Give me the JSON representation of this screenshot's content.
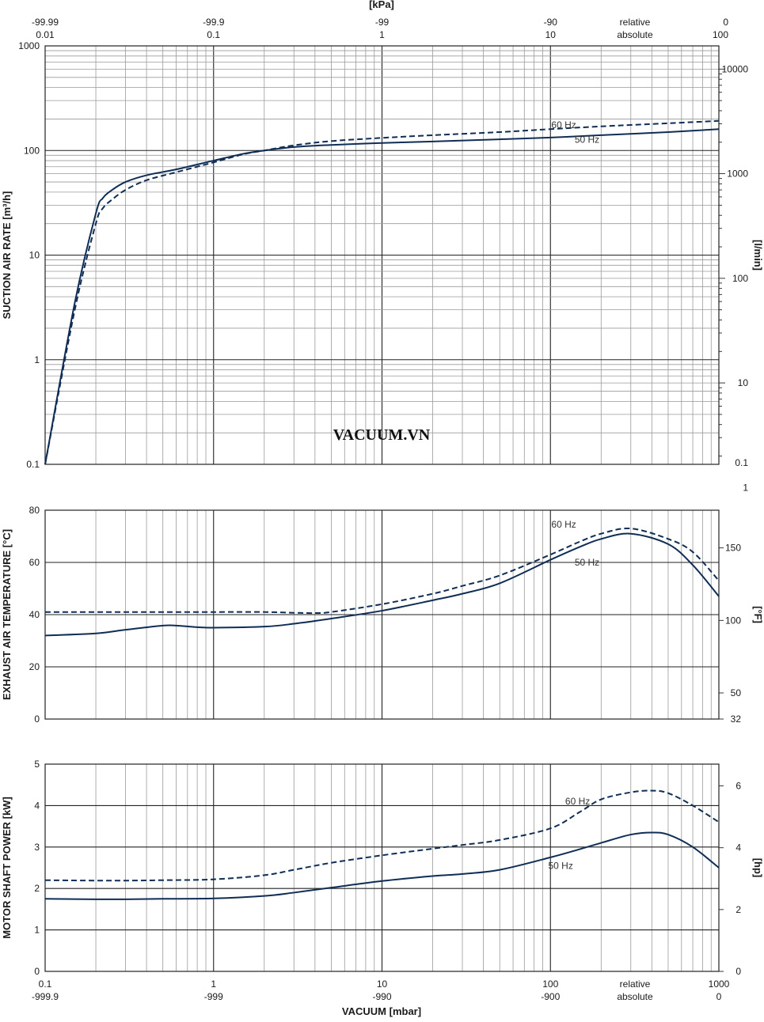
{
  "colors": {
    "curve": "#0f2d55",
    "grid_major": "#222222",
    "grid_minor": "#9a9a9a"
  },
  "watermark": "VACUUM.VN",
  "top_axis": {
    "title": "[kPa]",
    "ticks": [
      {
        "x": 0.01,
        "relative": "-99.99",
        "absolute": "0.01"
      },
      {
        "x": 0.1,
        "relative": "-99.9",
        "absolute": "0.1"
      },
      {
        "x": 1,
        "relative": "-99",
        "absolute": "1"
      },
      {
        "x": 10,
        "relative": "-90",
        "absolute": "10"
      },
      {
        "x": 100,
        "relative": "0",
        "absolute": "100"
      }
    ],
    "relative_label": "relative",
    "absolute_label": "absolute"
  },
  "bottom_axis": {
    "title": "VACUUM  [mbar]",
    "ticks": [
      {
        "x": 0.1,
        "absolute": "0.1",
        "relative": "-999.9"
      },
      {
        "x": 1,
        "absolute": "1",
        "relative": "-999"
      },
      {
        "x": 10,
        "absolute": "10",
        "relative": "-990"
      },
      {
        "x": 100,
        "absolute": "100",
        "relative": "-900"
      },
      {
        "x": 1000,
        "absolute": "1000",
        "relative": "0"
      }
    ],
    "relative_label": "relative",
    "absolute_label": "absolute"
  },
  "chart_data": [
    {
      "type": "line",
      "title": "",
      "xscale": "log",
      "xlim": [
        0.1,
        1000
      ],
      "yscale": "log",
      "ylim": [
        0.1,
        1000
      ],
      "xlabel": "VACUUM  [mbar]",
      "ylabel": "SUCTION AIR RATE  [m³/h]",
      "y2label": "[l/min]",
      "grid": true,
      "yticks": [
        {
          "v": 0.1,
          "label": "0.1"
        },
        {
          "v": 1,
          "label": "1"
        },
        {
          "v": 10,
          "label": "10"
        },
        {
          "v": 100,
          "label": "100"
        },
        {
          "v": 1000,
          "label": "1000"
        }
      ],
      "y2ticks": [
        {
          "v": 1,
          "label": "1"
        },
        {
          "v": 10,
          "label": "10"
        },
        {
          "v": 100,
          "label": "100"
        },
        {
          "v": 1000,
          "label": "1000"
        },
        {
          "v": 10000,
          "label": "10000"
        }
      ],
      "y2_minor_ticks": true,
      "y2_bottom_label": "0.1",
      "series": [
        {
          "name": "50 Hz",
          "style": "solid",
          "label_at": [
            165,
            127
          ],
          "x": [
            0.1,
            0.15,
            0.2,
            0.22,
            0.25,
            0.3,
            0.4,
            0.6,
            1,
            1.5,
            2,
            3,
            5,
            10,
            20,
            50,
            100,
            200,
            500,
            1000
          ],
          "y": [
            0.1,
            3.5,
            25,
            35,
            42,
            50,
            58,
            66,
            80,
            93,
            100,
            108,
            113,
            118,
            122,
            128,
            133,
            140,
            150,
            160
          ]
        },
        {
          "name": "60 Hz",
          "style": "dashed",
          "label_at": [
            120,
            175
          ],
          "x": [
            0.1,
            0.15,
            0.2,
            0.22,
            0.25,
            0.3,
            0.4,
            0.6,
            1,
            1.5,
            2,
            3,
            5,
            10,
            20,
            50,
            100,
            200,
            500,
            1000
          ],
          "y": [
            0.1,
            3,
            20,
            28,
            34,
            42,
            52,
            62,
            77,
            92,
            100,
            112,
            123,
            132,
            140,
            150,
            160,
            170,
            182,
            192
          ]
        }
      ]
    },
    {
      "type": "line",
      "title": "",
      "xscale": "log",
      "xlim": [
        0.1,
        1000
      ],
      "yscale": "linear",
      "ylim": [
        0,
        80
      ],
      "xlabel": "VACUUM  [mbar]",
      "ylabel": "EXHAUST AIR TEMPERATURE  [°C]",
      "y2label": "[°F]",
      "grid": true,
      "yticks": [
        {
          "v": 0,
          "label": "0"
        },
        {
          "v": 20,
          "label": "20"
        },
        {
          "v": 40,
          "label": "40"
        },
        {
          "v": 60,
          "label": "60"
        },
        {
          "v": 80,
          "label": "80"
        }
      ],
      "y2ticks": [
        {
          "v": 0,
          "label": "32"
        },
        {
          "v": 10,
          "label": "50"
        },
        {
          "v": 37.78,
          "label": "100"
        },
        {
          "v": 65.56,
          "label": "150"
        }
      ],
      "series": [
        {
          "name": "50 Hz",
          "style": "solid",
          "label_at": [
            165,
            60
          ],
          "x": [
            0.1,
            0.2,
            0.3,
            0.5,
            0.6,
            0.8,
            1,
            2,
            3,
            5,
            10,
            20,
            30,
            50,
            100,
            150,
            200,
            300,
            500,
            700,
            1000
          ],
          "y": [
            32,
            32.8,
            34.2,
            35.8,
            35.8,
            35.2,
            35,
            35.4,
            36.5,
            38.5,
            41.5,
            45.5,
            48,
            52,
            61,
            66,
            69,
            71,
            67,
            59,
            47
          ]
        },
        {
          "name": "60 Hz",
          "style": "dashed",
          "label_at": [
            120,
            74.5
          ],
          "x": [
            0.1,
            0.3,
            0.5,
            1,
            2,
            3,
            4,
            5,
            10,
            20,
            30,
            50,
            100,
            150,
            200,
            300,
            500,
            700,
            1000
          ],
          "y": [
            41,
            41,
            41,
            41,
            41,
            40.7,
            40.6,
            41,
            44,
            48,
            51,
            55,
            63,
            68,
            71,
            73,
            69,
            64,
            53
          ]
        }
      ]
    },
    {
      "type": "line",
      "title": "",
      "xscale": "log",
      "xlim": [
        0.1,
        1000
      ],
      "yscale": "linear",
      "ylim": [
        0,
        5
      ],
      "xlabel": "VACUUM  [mbar]",
      "ylabel": "MOTOR SHAFT POWER  [kW]",
      "y2label": "[hp]",
      "grid": true,
      "yticks": [
        {
          "v": 0,
          "label": "0"
        },
        {
          "v": 1,
          "label": "1"
        },
        {
          "v": 2,
          "label": "2"
        },
        {
          "v": 3,
          "label": "3"
        },
        {
          "v": 4,
          "label": "4"
        },
        {
          "v": 5,
          "label": "5"
        }
      ],
      "y2ticks": [
        {
          "v": 0,
          "label": "0"
        },
        {
          "v": 1.4914,
          "label": "2"
        },
        {
          "v": 2.9828,
          "label": "4"
        },
        {
          "v": 4.4742,
          "label": "6"
        }
      ],
      "series": [
        {
          "name": "50 Hz",
          "style": "solid",
          "label_at": [
            115,
            2.55
          ],
          "x": [
            0.1,
            0.2,
            0.3,
            0.5,
            1,
            2,
            3,
            5,
            10,
            20,
            30,
            50,
            100,
            150,
            200,
            300,
            400,
            500,
            700,
            1000
          ],
          "y": [
            1.75,
            1.74,
            1.74,
            1.75,
            1.76,
            1.82,
            1.9,
            2.02,
            2.18,
            2.3,
            2.35,
            2.45,
            2.75,
            2.95,
            3.1,
            3.3,
            3.35,
            3.3,
            3.0,
            2.5
          ]
        },
        {
          "name": "60 Hz",
          "style": "dashed",
          "label_at": [
            145,
            4.1
          ],
          "x": [
            0.1,
            0.2,
            0.3,
            0.5,
            1,
            2,
            3,
            5,
            10,
            20,
            30,
            50,
            100,
            150,
            200,
            300,
            400,
            500,
            700,
            1000
          ],
          "y": [
            2.2,
            2.19,
            2.19,
            2.2,
            2.22,
            2.32,
            2.45,
            2.62,
            2.8,
            2.96,
            3.05,
            3.17,
            3.45,
            3.85,
            4.15,
            4.32,
            4.36,
            4.3,
            4.0,
            3.6
          ]
        }
      ]
    }
  ]
}
